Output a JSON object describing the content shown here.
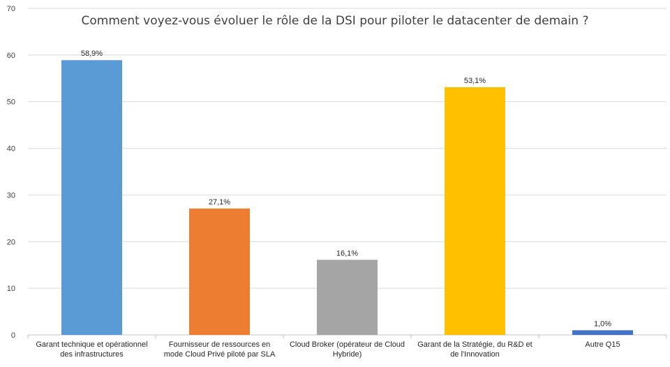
{
  "chart_data": {
    "type": "bar",
    "title": "Comment voyez-vous évoluer le rôle de la DSI pour piloter le datacenter de demain ?",
    "categories": [
      "Garant technique et opérationnel des infrastructures",
      "Fournisseur de ressources en mode Cloud Privé piloté par SLA",
      "Cloud Broker (opérateur de Cloud Hybride)",
      "Garant de la Stratégie, du R&D et de l'Innovation",
      "Autre Q15"
    ],
    "values": [
      58.9,
      27.1,
      16.1,
      53.1,
      1.0
    ],
    "data_labels": [
      "58,9%",
      "27,1%",
      "16,1%",
      "53,1%",
      "1,0%"
    ],
    "colors": [
      "#5b9bd5",
      "#ed7d31",
      "#a5a5a5",
      "#ffc000",
      "#4472c4"
    ],
    "ylim": [
      0,
      70
    ],
    "yticks": [
      0,
      10,
      20,
      30,
      40,
      50,
      60,
      70
    ],
    "grid": true,
    "legend": "none"
  }
}
